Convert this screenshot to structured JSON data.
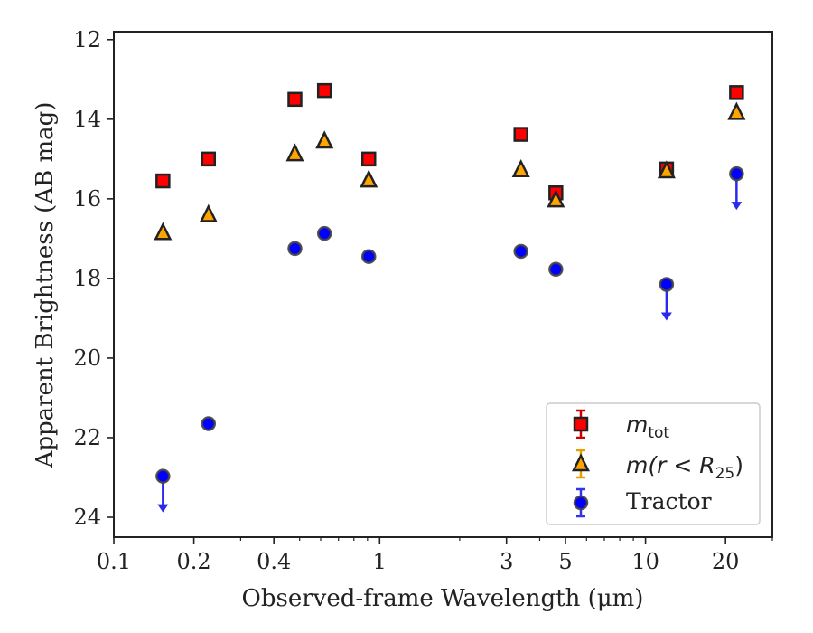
{
  "chart_data": {
    "type": "scatter",
    "xlabel": "Observed-frame Wavelength (μm)",
    "ylabel": "Apparent Brightness (AB mag)",
    "xscale": "log",
    "xlim": [
      0.1,
      30
    ],
    "ylim": [
      24.5,
      11.8
    ],
    "y_inverted": true,
    "x_ticks": [
      {
        "value": 0.1,
        "label": "0.1"
      },
      {
        "value": 0.2,
        "label": "0.2"
      },
      {
        "value": 0.4,
        "label": "0.4"
      },
      {
        "value": 1,
        "label": "1"
      },
      {
        "value": 3,
        "label": "3"
      },
      {
        "value": 5,
        "label": "5"
      },
      {
        "value": 10,
        "label": "10"
      },
      {
        "value": 20,
        "label": "20"
      }
    ],
    "x_minor_ticks": [
      0.3,
      0.5,
      0.6,
      0.7,
      0.8,
      0.9,
      2,
      4,
      6,
      7,
      8,
      9,
      30
    ],
    "y_ticks": [
      12,
      14,
      16,
      18,
      20,
      22,
      24
    ],
    "legend_position": "lower right",
    "series": [
      {
        "name": "m_tot",
        "legend_main": "m",
        "legend_sub": "tot",
        "marker": "square",
        "color": "#ff0000",
        "errorbar_color": "#cc0000",
        "points": [
          {
            "x": 0.153,
            "y": 15.55
          },
          {
            "x": 0.227,
            "y": 15.0
          },
          {
            "x": 0.48,
            "y": 13.5
          },
          {
            "x": 0.62,
            "y": 13.28
          },
          {
            "x": 0.91,
            "y": 15.0
          },
          {
            "x": 3.4,
            "y": 14.38
          },
          {
            "x": 4.6,
            "y": 15.85
          },
          {
            "x": 12.0,
            "y": 15.25
          },
          {
            "x": 22.0,
            "y": 13.33
          }
        ]
      },
      {
        "name": "m(r < R_25)",
        "legend_main": "m(r < R",
        "legend_sub": "25",
        "legend_close": ")",
        "marker": "triangle",
        "color": "#ffa500",
        "errorbar_color": "#e6a000",
        "points": [
          {
            "x": 0.153,
            "y": 16.85
          },
          {
            "x": 0.227,
            "y": 16.4
          },
          {
            "x": 0.48,
            "y": 14.87
          },
          {
            "x": 0.62,
            "y": 14.55
          },
          {
            "x": 0.91,
            "y": 15.53
          },
          {
            "x": 3.4,
            "y": 15.27
          },
          {
            "x": 4.6,
            "y": 16.03
          },
          {
            "x": 12.0,
            "y": 15.3
          },
          {
            "x": 22.0,
            "y": 13.83
          }
        ]
      },
      {
        "name": "Tractor",
        "marker": "circle",
        "color": "#0000ff",
        "errorbar_color": "#3333ee",
        "points": [
          {
            "x": 0.153,
            "y": 22.97,
            "upper_limit": true
          },
          {
            "x": 0.227,
            "y": 21.65
          },
          {
            "x": 0.48,
            "y": 17.25
          },
          {
            "x": 0.62,
            "y": 16.87
          },
          {
            "x": 0.91,
            "y": 17.45
          },
          {
            "x": 3.4,
            "y": 17.32
          },
          {
            "x": 4.6,
            "y": 17.77
          },
          {
            "x": 12.0,
            "y": 18.15,
            "upper_limit": true
          },
          {
            "x": 22.0,
            "y": 15.37,
            "upper_limit": true
          }
        ]
      }
    ]
  }
}
